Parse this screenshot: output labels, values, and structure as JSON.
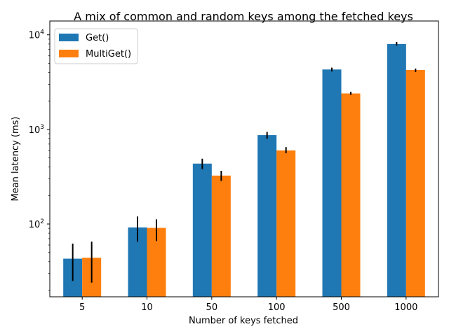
{
  "chart_data": {
    "type": "bar",
    "title": "A mix of common and random keys among the fetched keys",
    "xlabel": "Number of keys fetched",
    "ylabel": "Mean latency (ms)",
    "yscale": "log",
    "ylim": [
      17,
      14000
    ],
    "grid": false,
    "legend_position": "top-left",
    "categories": [
      "5",
      "10",
      "50",
      "100",
      "500",
      "1000"
    ],
    "y_ticks": [
      {
        "value": 100,
        "base": "10",
        "exp": "2"
      },
      {
        "value": 1000,
        "base": "10",
        "exp": "3"
      },
      {
        "value": 10000,
        "base": "10",
        "exp": "4"
      }
    ],
    "series": [
      {
        "name": "Get()",
        "color": "#1f77b4",
        "values": [
          43,
          92,
          435,
          870,
          4300,
          8000
        ],
        "err_low": [
          25,
          65,
          380,
          800,
          4100,
          7700
        ],
        "err_high": [
          62,
          120,
          490,
          940,
          4500,
          8400
        ]
      },
      {
        "name": "MultiGet()",
        "color": "#ff7f0e",
        "values": [
          44,
          91,
          325,
          600,
          2400,
          4250
        ],
        "err_low": [
          24,
          66,
          285,
          560,
          2320,
          4050
        ],
        "err_high": [
          65,
          112,
          365,
          650,
          2500,
          4400
        ]
      }
    ]
  }
}
